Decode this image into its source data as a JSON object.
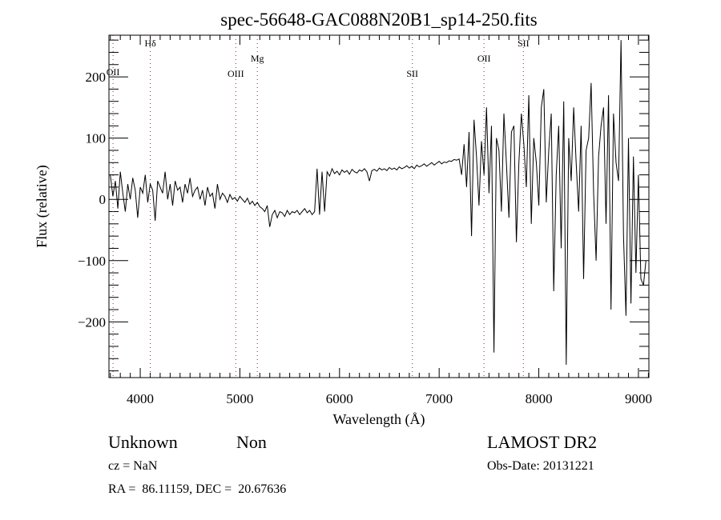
{
  "chart_data": {
    "type": "line",
    "title": "spec-56648-GAC088N20B1_sp14-250.fits",
    "xlabel": "Wavelength (Å)",
    "ylabel": "Flux (relative)",
    "xlim": [
      3686,
      9105
    ],
    "ylim": [
      -291,
      268
    ],
    "grid": false,
    "x_ticks": [
      4000,
      5000,
      6000,
      7000,
      8000,
      9000
    ],
    "x_tick_labels": [
      "4000",
      "5000",
      "6000",
      "7000",
      "8000",
      "9000"
    ],
    "y_ticks": [
      -200,
      -100,
      0,
      100,
      200
    ],
    "y_tick_labels": [
      "−200",
      "−100",
      "0",
      "100",
      "200"
    ],
    "line_markers": [
      {
        "label": "OII",
        "x": 3727,
        "label_flux": 203
      },
      {
        "label": "Hδ",
        "x": 4101,
        "label_flux": 250
      },
      {
        "label": "OIII",
        "x": 4959,
        "label_flux": 200
      },
      {
        "label": "Mg",
        "x": 5175,
        "label_flux": 225
      },
      {
        "label": "SII",
        "x": 6731,
        "label_flux": 200
      },
      {
        "label": "OII",
        "x": 7450,
        "label_flux": 225
      },
      {
        "label": "SII",
        "x": 7845,
        "label_flux": 250
      }
    ],
    "series": [
      {
        "name": "spectrum",
        "x_start": 3700,
        "x_step": 25,
        "values": [
          40,
          5,
          30,
          -15,
          45,
          10,
          -20,
          25,
          0,
          35,
          15,
          -30,
          20,
          10,
          40,
          -5,
          25,
          15,
          -35,
          30,
          20,
          10,
          45,
          0,
          25,
          -10,
          30,
          15,
          20,
          -5,
          25,
          10,
          35,
          5,
          15,
          20,
          0,
          15,
          -10,
          20,
          5,
          10,
          -15,
          25,
          0,
          10,
          5,
          -5,
          8,
          0,
          3,
          -3,
          5,
          0,
          -5,
          2,
          -8,
          -3,
          -10,
          -5,
          -12,
          -15,
          -20,
          -10,
          -45,
          -25,
          -18,
          -30,
          -20,
          -22,
          -28,
          -18,
          -25,
          -20,
          -22,
          -18,
          -25,
          -20,
          -15,
          -22,
          -18,
          -25,
          -20,
          50,
          -25,
          45,
          -20,
          45,
          38,
          50,
          42,
          46,
          40,
          48,
          44,
          47,
          41,
          49,
          45,
          43,
          48,
          46,
          50,
          45,
          30,
          47,
          49,
          46,
          51,
          48,
          50,
          47,
          52,
          49,
          51,
          48,
          53,
          50,
          52,
          55,
          51,
          54,
          50,
          56,
          53,
          55,
          58,
          54,
          57,
          60,
          56,
          59,
          62,
          58,
          61,
          60,
          63,
          62,
          65,
          64,
          66,
          40,
          90,
          20,
          110,
          -60,
          130,
          70,
          -10,
          95,
          40,
          150,
          10,
          120,
          -250,
          100,
          80,
          -20,
          140,
          60,
          -30,
          110,
          120,
          -70,
          60,
          140,
          90,
          20,
          170,
          -40,
          100,
          60,
          -10,
          150,
          180,
          -5,
          80,
          140,
          -150,
          40,
          120,
          -80,
          160,
          -270,
          100,
          30,
          150,
          60,
          -20,
          120,
          -130,
          80,
          100,
          190,
          10,
          -100,
          70,
          120,
          150,
          -40,
          170,
          -180,
          140,
          60,
          30,
          260,
          -60,
          -190,
          100,
          -170,
          70,
          -120,
          40,
          -130,
          -140,
          -100
        ]
      }
    ]
  },
  "footer": {
    "object_class": "Unknown",
    "subclass": "Non",
    "cz": "cz = NaN",
    "coords": "RA =  86.11159, DEC =  20.67636",
    "survey": "LAMOST DR2",
    "obs_date": "Obs-Date: 20131221"
  }
}
